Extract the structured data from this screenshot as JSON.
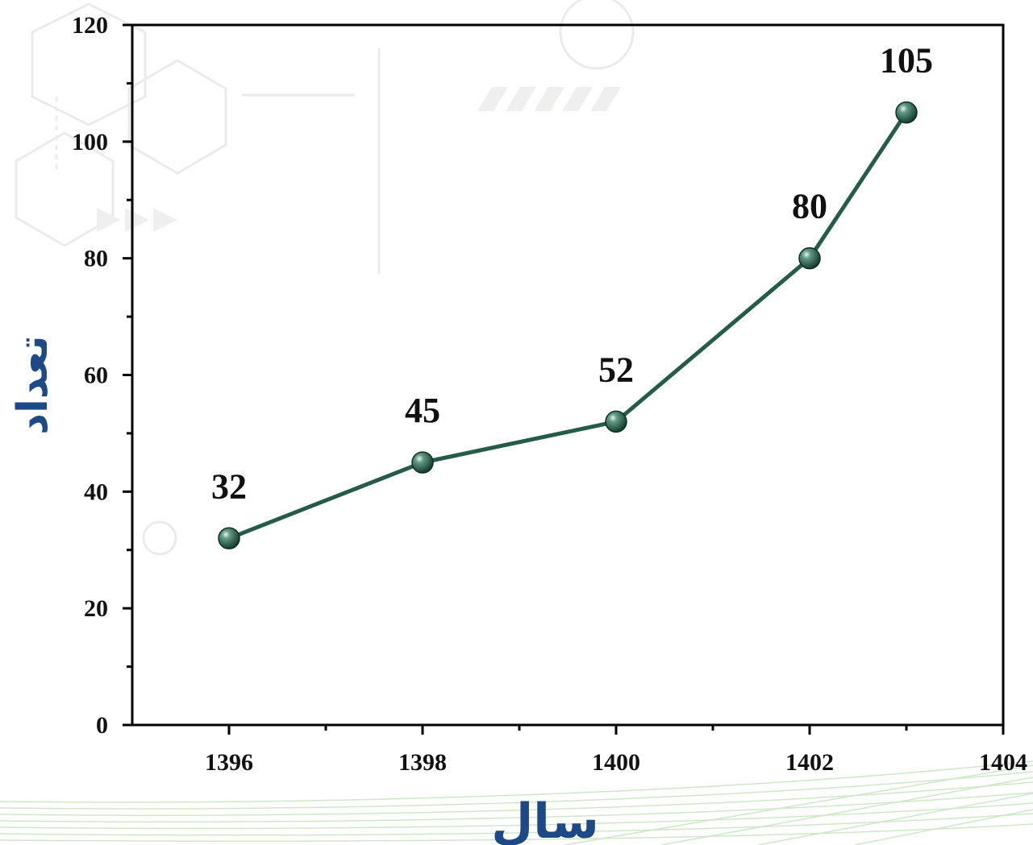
{
  "colors": {
    "line": "#245c47",
    "marker": "#245c47",
    "axis_title": "#1d4a86",
    "frame": "#000000"
  },
  "chart_data": {
    "type": "line",
    "title": "",
    "xlabel": "سال",
    "ylabel": "تعداد",
    "x": [
      1396,
      1398,
      1400,
      1402,
      1403
    ],
    "series": [
      {
        "values": [
          32,
          45,
          52,
          80,
          105
        ]
      }
    ],
    "data_labels": [
      "32",
      "45",
      "52",
      "80",
      "105"
    ],
    "xlim": [
      1395,
      1404
    ],
    "ylim": [
      0,
      120
    ],
    "xticks": [
      1396,
      1398,
      1400,
      1402,
      1404
    ],
    "xtick_labels": [
      "1396",
      "1398",
      "1400",
      "1402",
      "1404"
    ],
    "yticks": [
      0,
      20,
      40,
      60,
      80,
      100,
      120
    ],
    "ytick_labels": [
      "0",
      "20",
      "40",
      "60",
      "80",
      "100",
      "120"
    ],
    "grid": false
  }
}
